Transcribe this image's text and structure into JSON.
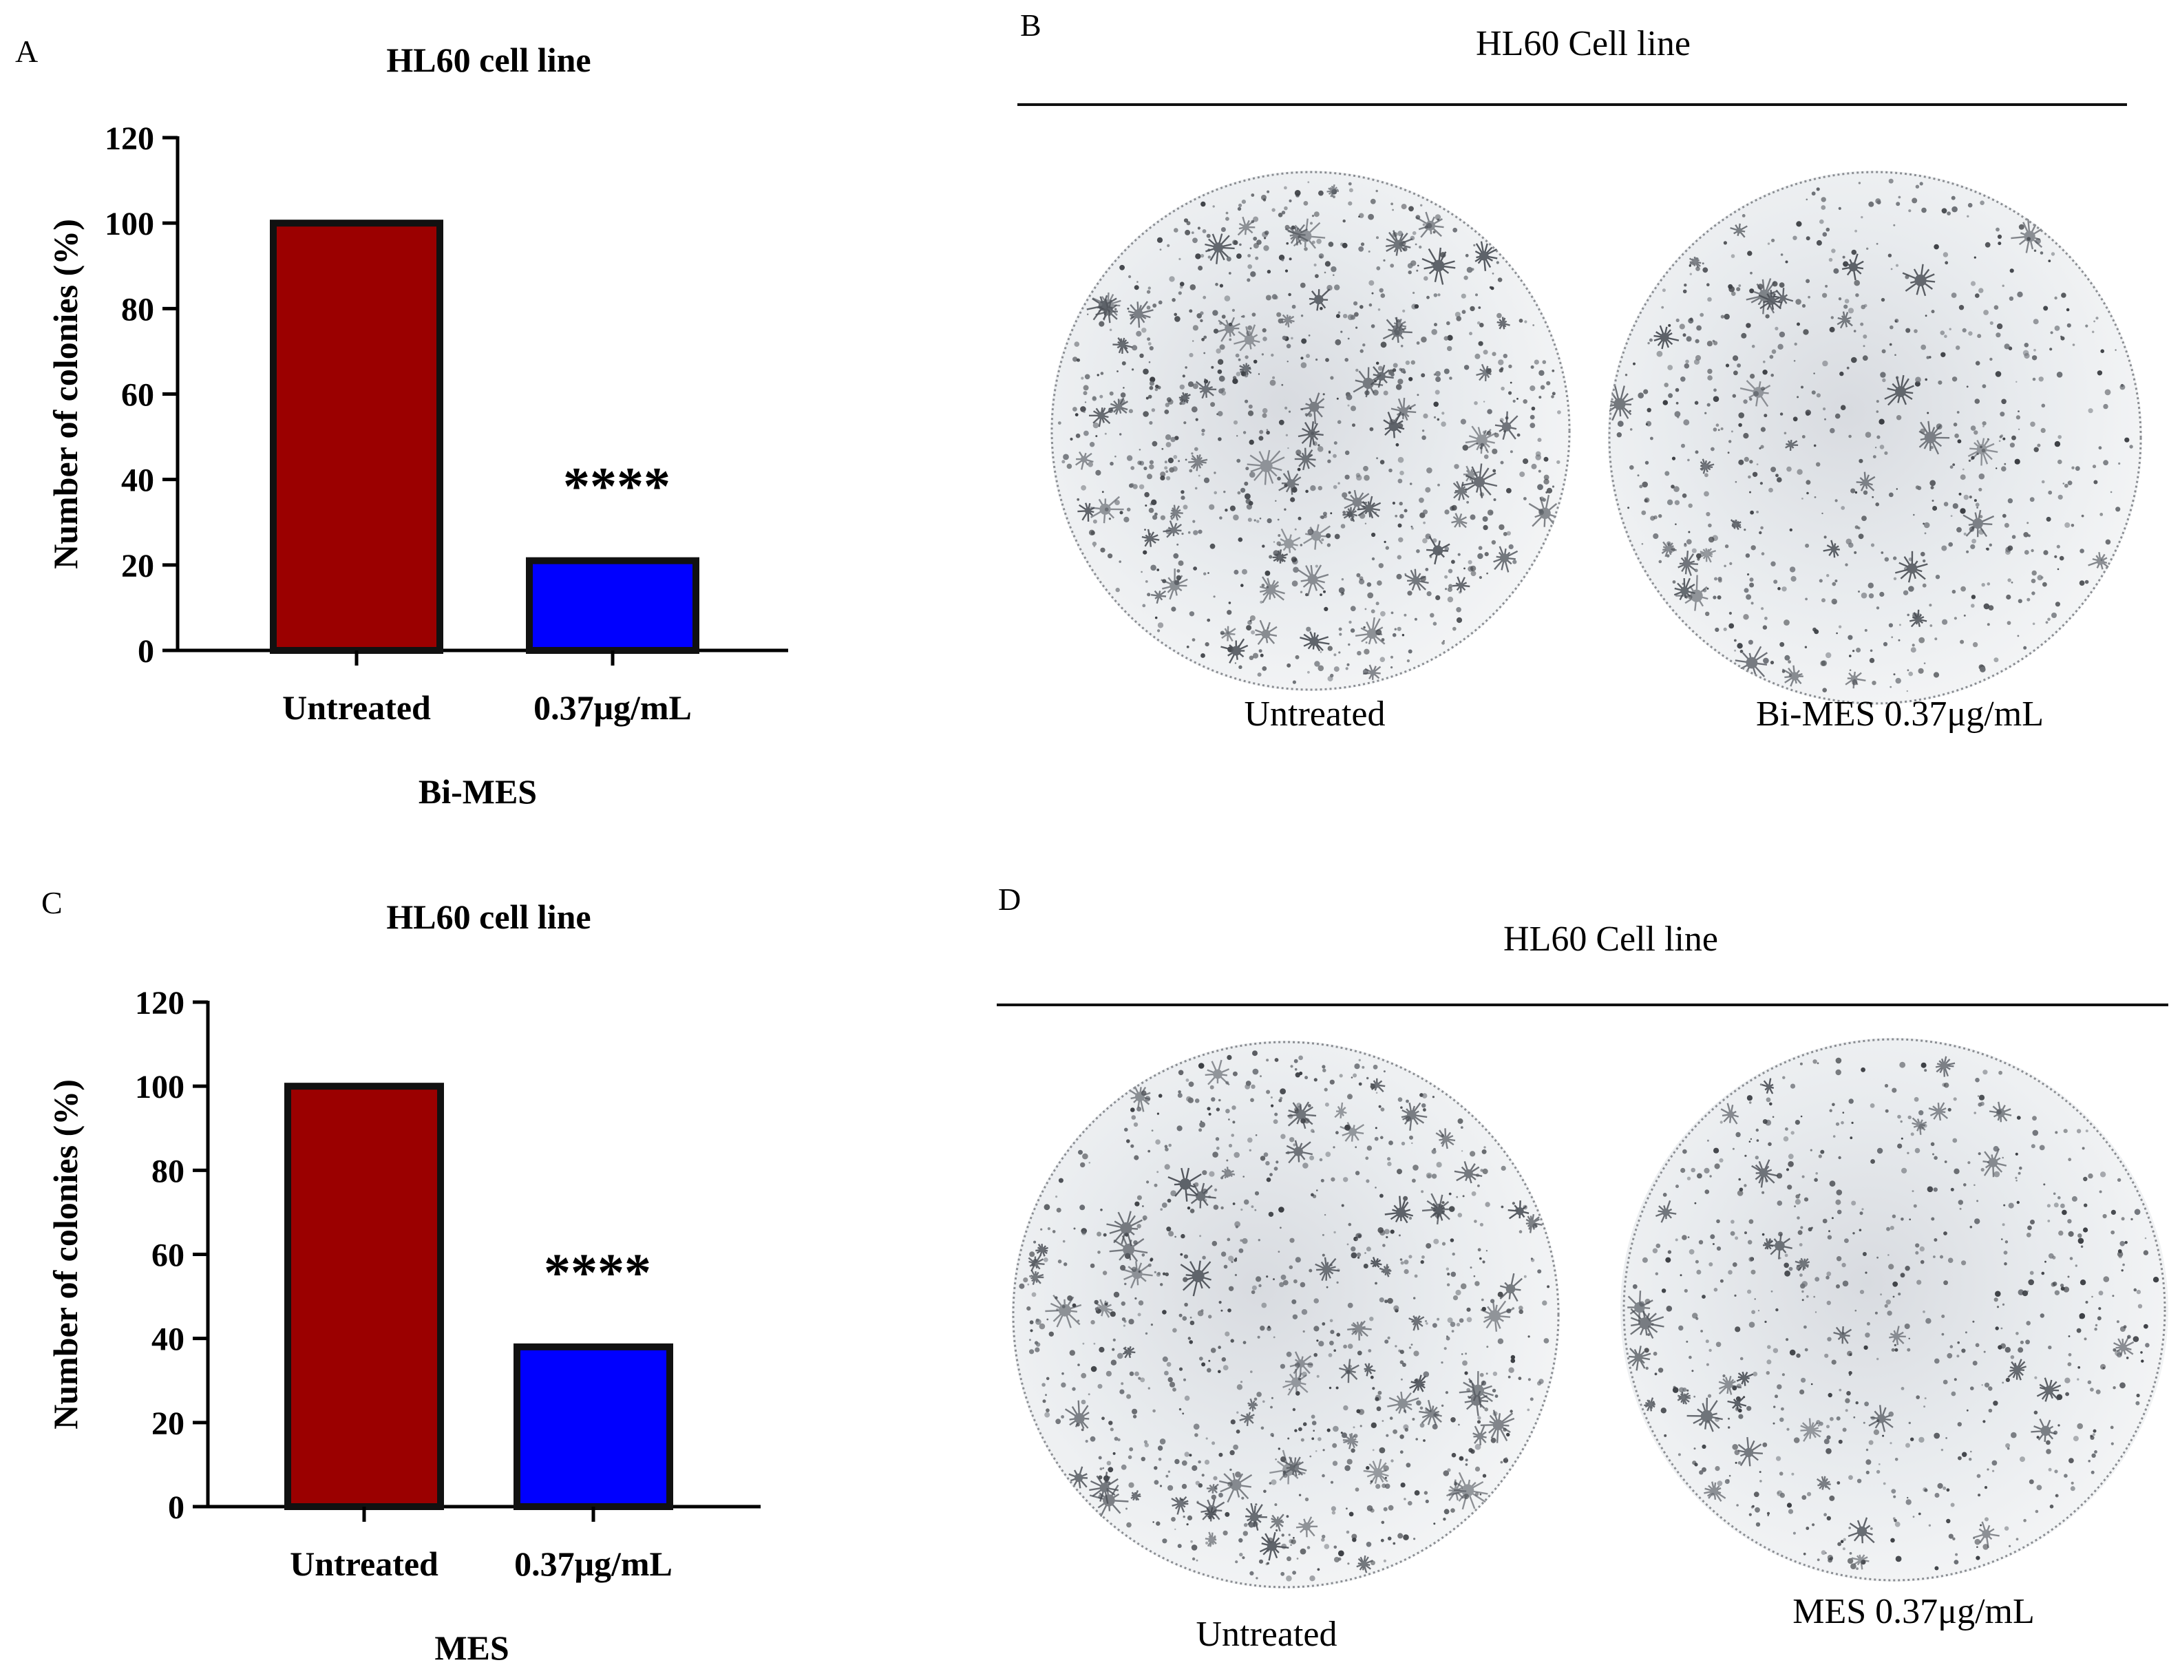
{
  "panels": {
    "A": {
      "letter": "A",
      "title": "HL60 cell line",
      "group_label": "Bi-MES",
      "significance": "****"
    },
    "B": {
      "letter": "B",
      "title": "HL60 Cell line",
      "left_label": "Untreated",
      "right_label": "Bi-MES 0.37μg/mL"
    },
    "C": {
      "letter": "C",
      "title": "HL60 cell line",
      "group_label": "MES",
      "significance": "****"
    },
    "D": {
      "letter": "D",
      "title": "HL60 Cell line",
      "left_label": "Untreated",
      "right_label": "MES 0.37μg/mL"
    }
  },
  "colors": {
    "untreated": "#9b0000",
    "treated": "#0000ff",
    "outline": "#111111"
  },
  "chart_data": [
    {
      "type": "bar",
      "title": "HL60 cell line",
      "categories": [
        "Untreated",
        "0.37μg/mL"
      ],
      "values": [
        100,
        21
      ],
      "xlabel": "Bi-MES",
      "ylabel": "Number of colonies (%)",
      "ylim": [
        0,
        120
      ],
      "yticks": [
        0,
        20,
        40,
        60,
        80,
        100,
        120
      ],
      "annotations": [
        {
          "category": "0.37μg/mL",
          "text": "****"
        }
      ]
    },
    {
      "type": "bar",
      "title": "HL60 cell line",
      "categories": [
        "Untreated",
        "0.37μg/mL"
      ],
      "values": [
        100,
        38
      ],
      "xlabel": "MES",
      "ylabel": "Number of colonies (%)",
      "ylim": [
        0,
        120
      ],
      "yticks": [
        0,
        20,
        40,
        60,
        80,
        100,
        120
      ],
      "annotations": [
        {
          "category": "0.37μg/mL",
          "text": "****"
        }
      ]
    }
  ]
}
